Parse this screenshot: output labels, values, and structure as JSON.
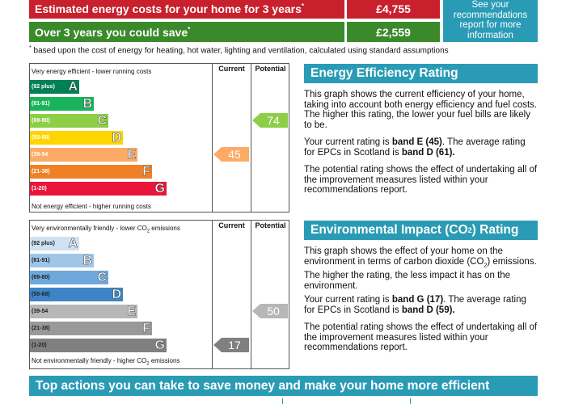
{
  "costs": {
    "row1_label": "Estimated energy costs for your home for 3 years",
    "row1_value": "£4,755",
    "row2_label": "Over 3 years you could save",
    "row2_value": "£2,559",
    "asterisk": "*",
    "see_report": "See your recommendations report for more information",
    "footnote_text": "based upon the cost of energy for heating, hot water, lighting and ventilation, calculated using standard assumptions"
  },
  "col_current": "Current",
  "col_potential": "Potential",
  "eer_chart": {
    "top_caption": "Very energy efficient - lower running costs",
    "bottom_caption": "Not energy efficient - higher running costs",
    "bands": [
      {
        "range": "(92 plus)",
        "letter": "A",
        "color": "#008054"
      },
      {
        "range": "(81-91)",
        "letter": "B",
        "color": "#19b459"
      },
      {
        "range": "(69-80)",
        "letter": "C",
        "color": "#8dce46"
      },
      {
        "range": "(55-68)",
        "letter": "D",
        "color": "#ffd500"
      },
      {
        "range": "(39-54",
        "letter": "E",
        "color": "#fcaa65"
      },
      {
        "range": "(21-38)",
        "letter": "F",
        "color": "#ef8023"
      },
      {
        "range": "(1-20)",
        "letter": "G",
        "color": "#e9153b"
      }
    ],
    "current": {
      "value": "45",
      "band": "E",
      "color": "#fcaa65"
    },
    "potential": {
      "value": "74",
      "band": "C",
      "color": "#8dce46"
    }
  },
  "ei_chart": {
    "top_caption_pre": "Very environmentally friendly - lower CO",
    "top_caption_sub": "2",
    "top_caption_post": " emissions",
    "bottom_caption_pre": "Not environmentally friendly - higher CO",
    "bottom_caption_sub": "2",
    "bottom_caption_post": " emissions",
    "bands": [
      {
        "range": "(92 plus)",
        "letter": "A",
        "color": "#cfe2f3"
      },
      {
        "range": "(81-91)",
        "letter": "B",
        "color": "#9fc5e8"
      },
      {
        "range": "(69-80)",
        "letter": "C",
        "color": "#6fa8dc"
      },
      {
        "range": "(55-68)",
        "letter": "D",
        "color": "#3d85c6"
      },
      {
        "range": "(39-54",
        "letter": "E",
        "color": "#b7b7b7"
      },
      {
        "range": "(21-38)",
        "letter": "F",
        "color": "#999999"
      },
      {
        "range": "(1-20)",
        "letter": "G",
        "color": "#808080"
      }
    ],
    "current": {
      "value": "17",
      "band": "G",
      "color": "#808080"
    },
    "potential": {
      "value": "50",
      "band": "E",
      "color": "#b7b7b7"
    }
  },
  "eer_text": {
    "heading": "Energy Efficiency Rating",
    "p1": "This graph shows the current efficiency of your home, taking into account both energy efficiency and fuel costs. The higher this rating, the lower your fuel bills are likely to be.",
    "p2_pre": "Your current rating is ",
    "p2_b1": "band E (45)",
    "p2_mid": ". The average rating for EPCs in Scotland is ",
    "p2_b2": "band D (61).",
    "p3": "The potential rating shows the effect of undertaking all of the improvement measures listed within your recommendations report."
  },
  "ei_text": {
    "heading_pre": "Environmental Impact (CO",
    "heading_sub": "2",
    "heading_post": ") Rating",
    "p1_pre": "This graph shows the effect of your home on the environment in terms of carbon dioxide (CO",
    "p1_sub": "2",
    "p1_post": ") emissions. The higher the rating, the less impact it has on the environment.",
    "p2_pre": "Your current rating is ",
    "p2_b1": "band G (17)",
    "p2_mid": ". The average rating for EPCs in Scotland is ",
    "p2_b2": "band D (59).",
    "p3": "The potential rating shows the effect of undertaking all of the improvement measures listed within your recommendations report."
  },
  "bottom_banner": "Top actions you can take to save money and make your home more efficient"
}
